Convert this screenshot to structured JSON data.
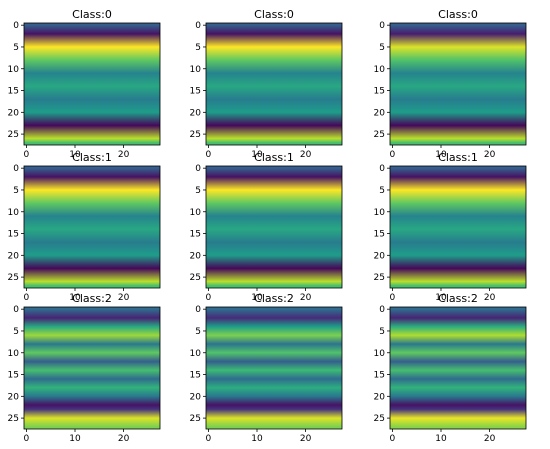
{
  "chart_data": {
    "type": "heatmap",
    "colormap": "viridis",
    "rows": 3,
    "cols": 3,
    "image_size": 28,
    "x_ticks": [
      0,
      10,
      20
    ],
    "y_ticks": [
      0,
      5,
      10,
      15,
      20,
      25
    ],
    "x_tick_labels": [
      "0",
      "10",
      "20"
    ],
    "y_tick_labels": [
      "0",
      "5",
      "10",
      "15",
      "20",
      "25"
    ],
    "panels": [
      {
        "title": "Class:0",
        "bands": [
          {
            "row": 0,
            "value": 0.3
          },
          {
            "row": 2,
            "value": 0.05
          },
          {
            "row": 5,
            "value": 1.0
          },
          {
            "row": 8,
            "value": 0.75
          },
          {
            "row": 11,
            "value": 0.45
          },
          {
            "row": 14,
            "value": 0.6
          },
          {
            "row": 17,
            "value": 0.42
          },
          {
            "row": 20,
            "value": 0.55
          },
          {
            "row": 23,
            "value": 0.02
          },
          {
            "row": 26,
            "value": 0.9
          },
          {
            "row": 27,
            "value": 0.7
          }
        ]
      },
      {
        "title": "Class:0",
        "bands": [
          {
            "row": 0,
            "value": 0.3
          },
          {
            "row": 2,
            "value": 0.05
          },
          {
            "row": 5,
            "value": 1.0
          },
          {
            "row": 8,
            "value": 0.75
          },
          {
            "row": 11,
            "value": 0.45
          },
          {
            "row": 14,
            "value": 0.6
          },
          {
            "row": 17,
            "value": 0.42
          },
          {
            "row": 20,
            "value": 0.55
          },
          {
            "row": 23,
            "value": 0.02
          },
          {
            "row": 26,
            "value": 0.9
          },
          {
            "row": 27,
            "value": 0.7
          }
        ]
      },
      {
        "title": "Class:0",
        "bands": [
          {
            "row": 0,
            "value": 0.3
          },
          {
            "row": 2,
            "value": 0.08
          },
          {
            "row": 5,
            "value": 0.95
          },
          {
            "row": 8,
            "value": 0.72
          },
          {
            "row": 11,
            "value": 0.45
          },
          {
            "row": 14,
            "value": 0.6
          },
          {
            "row": 17,
            "value": 0.42
          },
          {
            "row": 20,
            "value": 0.55
          },
          {
            "row": 23,
            "value": 0.02
          },
          {
            "row": 26,
            "value": 0.9
          },
          {
            "row": 27,
            "value": 0.7
          }
        ]
      },
      {
        "title": "Class:1",
        "bands": [
          {
            "row": 0,
            "value": 0.3
          },
          {
            "row": 2,
            "value": 0.05
          },
          {
            "row": 5,
            "value": 1.0
          },
          {
            "row": 8,
            "value": 0.75
          },
          {
            "row": 11,
            "value": 0.45
          },
          {
            "row": 14,
            "value": 0.6
          },
          {
            "row": 17,
            "value": 0.42
          },
          {
            "row": 20,
            "value": 0.55
          },
          {
            "row": 23,
            "value": 0.02
          },
          {
            "row": 26,
            "value": 0.9
          },
          {
            "row": 27,
            "value": 0.7
          }
        ]
      },
      {
        "title": "Class:1",
        "bands": [
          {
            "row": 0,
            "value": 0.3
          },
          {
            "row": 2,
            "value": 0.05
          },
          {
            "row": 5,
            "value": 1.0
          },
          {
            "row": 8,
            "value": 0.75
          },
          {
            "row": 11,
            "value": 0.45
          },
          {
            "row": 14,
            "value": 0.6
          },
          {
            "row": 17,
            "value": 0.42
          },
          {
            "row": 20,
            "value": 0.55
          },
          {
            "row": 23,
            "value": 0.02
          },
          {
            "row": 26,
            "value": 0.9
          },
          {
            "row": 27,
            "value": 0.7
          }
        ]
      },
      {
        "title": "Class:1",
        "bands": [
          {
            "row": 0,
            "value": 0.3
          },
          {
            "row": 2,
            "value": 0.05
          },
          {
            "row": 5,
            "value": 1.0
          },
          {
            "row": 8,
            "value": 0.75
          },
          {
            "row": 11,
            "value": 0.45
          },
          {
            "row": 14,
            "value": 0.6
          },
          {
            "row": 17,
            "value": 0.42
          },
          {
            "row": 20,
            "value": 0.55
          },
          {
            "row": 23,
            "value": 0.02
          },
          {
            "row": 26,
            "value": 0.9
          },
          {
            "row": 27,
            "value": 0.7
          }
        ]
      },
      {
        "title": "Class:2",
        "bands": [
          {
            "row": 0,
            "value": 0.35
          },
          {
            "row": 2,
            "value": 0.1
          },
          {
            "row": 4,
            "value": 0.6
          },
          {
            "row": 6,
            "value": 0.85
          },
          {
            "row": 8,
            "value": 0.4
          },
          {
            "row": 10,
            "value": 0.75
          },
          {
            "row": 12,
            "value": 0.3
          },
          {
            "row": 14,
            "value": 0.7
          },
          {
            "row": 16,
            "value": 0.35
          },
          {
            "row": 18,
            "value": 0.65
          },
          {
            "row": 20,
            "value": 0.4
          },
          {
            "row": 22,
            "value": 0.05
          },
          {
            "row": 23,
            "value": 0.15
          },
          {
            "row": 25,
            "value": 0.95
          },
          {
            "row": 27,
            "value": 0.8
          }
        ]
      },
      {
        "title": "Class:2",
        "bands": [
          {
            "row": 0,
            "value": 0.35
          },
          {
            "row": 2,
            "value": 0.12
          },
          {
            "row": 4,
            "value": 0.55
          },
          {
            "row": 6,
            "value": 0.8
          },
          {
            "row": 8,
            "value": 0.38
          },
          {
            "row": 10,
            "value": 0.72
          },
          {
            "row": 12,
            "value": 0.3
          },
          {
            "row": 14,
            "value": 0.68
          },
          {
            "row": 16,
            "value": 0.35
          },
          {
            "row": 18,
            "value": 0.62
          },
          {
            "row": 20,
            "value": 0.4
          },
          {
            "row": 22,
            "value": 0.05
          },
          {
            "row": 23,
            "value": 0.15
          },
          {
            "row": 25,
            "value": 0.95
          },
          {
            "row": 27,
            "value": 0.8
          }
        ]
      },
      {
        "title": "Class:2",
        "bands": [
          {
            "row": 0,
            "value": 0.35
          },
          {
            "row": 2,
            "value": 0.1
          },
          {
            "row": 4,
            "value": 0.62
          },
          {
            "row": 6,
            "value": 0.88
          },
          {
            "row": 8,
            "value": 0.4
          },
          {
            "row": 10,
            "value": 0.75
          },
          {
            "row": 12,
            "value": 0.3
          },
          {
            "row": 14,
            "value": 0.7
          },
          {
            "row": 16,
            "value": 0.35
          },
          {
            "row": 18,
            "value": 0.65
          },
          {
            "row": 20,
            "value": 0.4
          },
          {
            "row": 22,
            "value": 0.05
          },
          {
            "row": 23,
            "value": 0.15
          },
          {
            "row": 25,
            "value": 0.97
          },
          {
            "row": 27,
            "value": 0.82
          }
        ]
      }
    ]
  }
}
